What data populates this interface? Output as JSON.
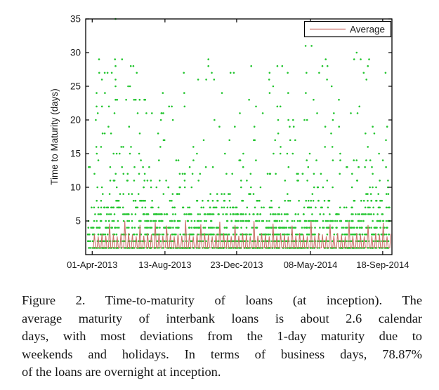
{
  "figure": {
    "caption": {
      "lines": [
        "Figure 2. Time-to-maturity of loans (at inception). The",
        "average maturity of interbank loans is about 2.6 calendar",
        "days, with most deviations from the 1-day maturity due to",
        "weekends and holidays. In terms of business days, 78.87%",
        "of the loans are overnight at inception."
      ]
    }
  },
  "chart_data": {
    "type": "scatter",
    "title": "",
    "xlabel": "",
    "ylabel": "Time to Maturity (days)",
    "ylim": [
      0,
      35
    ],
    "yticks": [
      5,
      10,
      15,
      20,
      25,
      30,
      35
    ],
    "xticks": [
      {
        "label": "01-Apr-2013",
        "day": 0
      },
      {
        "label": "13-Aug-2013",
        "day": 134
      },
      {
        "label": "23-Dec-2013",
        "day": 266
      },
      {
        "label": "08-May-2014",
        "day": 402
      },
      {
        "label": "18-Sep-2014",
        "day": 535
      }
    ],
    "x_range_days": [
      -12,
      552
    ],
    "grid": false,
    "legend": {
      "label": "Average",
      "position": "top-right"
    },
    "colors": {
      "marker": "#22c52e",
      "average_line": "#c96a63",
      "axis": "#000000",
      "background": "#ffffff"
    },
    "marker_size_px": 2.6,
    "seed": 42,
    "scatter_bands": [
      {
        "y": 1,
        "count": 320
      },
      {
        "y": 2,
        "count": 260
      },
      {
        "y": 3,
        "count": 210
      },
      {
        "y": 4,
        "count": 170
      },
      {
        "y": 5,
        "count": 150
      },
      {
        "y": 6,
        "count": 130
      },
      {
        "y": 7,
        "count": 80
      },
      {
        "y": 8,
        "count": 60
      },
      {
        "y": 9,
        "count": 30
      },
      {
        "y": 10,
        "count": 26
      },
      {
        "y": 11,
        "count": 24
      },
      {
        "y": 12,
        "count": 28
      },
      {
        "y": 13,
        "count": 20
      },
      {
        "y": 14,
        "count": 18
      },
      {
        "y": 15,
        "count": 16
      },
      {
        "y": 16,
        "count": 11
      },
      {
        "y": 17,
        "count": 10
      },
      {
        "y": 18,
        "count": 9
      },
      {
        "y": 19,
        "count": 11
      },
      {
        "y": 20,
        "count": 10
      },
      {
        "y": 21,
        "count": 10
      },
      {
        "y": 22,
        "count": 8
      },
      {
        "y": 23,
        "count": 8
      },
      {
        "y": 24,
        "count": 6
      },
      {
        "y": 25,
        "count": 4
      },
      {
        "y": 26,
        "count": 5
      },
      {
        "y": 27,
        "count": 8
      },
      {
        "y": 28,
        "count": 5
      },
      {
        "y": 29,
        "count": 4
      }
    ],
    "extra_points": [
      [
        43,
        35
      ],
      [
        42,
        29
      ],
      [
        55,
        29
      ],
      [
        43,
        28
      ],
      [
        71,
        28
      ],
      [
        13,
        27
      ],
      [
        23,
        27
      ],
      [
        36,
        27
      ],
      [
        82,
        27
      ],
      [
        43,
        26
      ],
      [
        43,
        25
      ],
      [
        8,
        24
      ],
      [
        130,
        24
      ],
      [
        43,
        23
      ],
      [
        77,
        23
      ],
      [
        96,
        23
      ],
      [
        8,
        22
      ],
      [
        18,
        22
      ],
      [
        110,
        21
      ],
      [
        41,
        21
      ],
      [
        128,
        21
      ],
      [
        131,
        21
      ],
      [
        210,
        26
      ],
      [
        214,
        28
      ],
      [
        350,
        28
      ],
      [
        360,
        27
      ],
      [
        393,
        31
      ],
      [
        404,
        31
      ],
      [
        418,
        27
      ],
      [
        424,
        28
      ],
      [
        430,
        29
      ],
      [
        487,
        30
      ],
      [
        500,
        27
      ],
      [
        505,
        26
      ],
      [
        510,
        29
      ]
    ],
    "average_line": {
      "baseline": 1,
      "week_period_days": 7,
      "weekly_peaks": [
        3.0,
        2.7,
        3.1,
        2.8,
        4.6,
        3.0,
        2.7,
        3.1,
        5.0,
        3.2,
        3.0,
        2.7,
        4.4,
        2.8,
        3.2,
        3.0,
        4.8,
        3.1,
        2.8,
        4.3,
        3.0,
        2.7,
        3.1,
        2.8,
        5.1,
        3.0,
        2.7,
        3.1,
        4.5,
        3.2,
        3.0,
        2.7,
        3.1,
        4.9,
        3.2,
        3.0,
        2.7,
        4.4,
        2.8,
        3.2,
        3.0,
        2.7,
        5.0,
        2.8,
        3.2,
        3.0,
        2.7,
        4.6,
        2.8,
        3.2,
        3.0,
        2.7,
        4.3,
        2.8,
        3.2,
        3.0,
        2.7,
        5.0,
        2.8,
        3.2,
        3.0,
        2.7,
        4.5,
        2.8,
        3.2,
        3.0,
        2.7,
        4.9,
        2.8,
        3.2,
        3.0,
        2.7,
        4.4,
        2.8,
        3.2,
        3.0,
        4.7,
        2.7,
        3.1
      ]
    }
  }
}
